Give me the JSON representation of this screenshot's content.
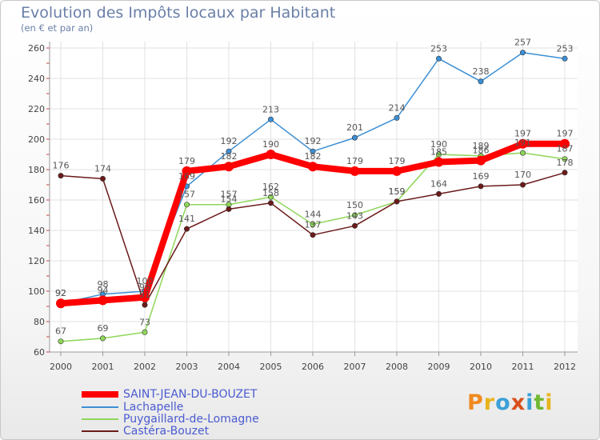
{
  "title": "Evolution des Impôts locaux par Habitant",
  "subtitle": "(en € et par an)",
  "brand": "Proxiti",
  "chart_data": {
    "type": "line",
    "title": "Evolution des Impôts locaux par Habitant",
    "subtitle": "(en € et par an)",
    "xlabel": "",
    "ylabel": "",
    "x": [
      "2000",
      "2001",
      "2002",
      "2003",
      "2004",
      "2005",
      "2006",
      "2007",
      "2008",
      "2009",
      "2010",
      "2011",
      "2012"
    ],
    "ylim": [
      60,
      260
    ],
    "yticks": [
      60,
      80,
      100,
      120,
      140,
      160,
      180,
      200,
      220,
      240,
      260
    ],
    "grid": true,
    "legend_position": "bottom-left",
    "series": [
      {
        "name": "SAINT-JEAN-DU-BOUZET",
        "color": "#ff0000",
        "values": [
          92,
          94,
          96,
          179,
          182,
          190,
          182,
          179,
          179,
          185,
          186,
          197,
          197
        ]
      },
      {
        "name": "Lachapelle",
        "color": "#3c8fd4",
        "values": [
          92,
          98,
          100,
          169,
          192,
          213,
          192,
          201,
          214,
          253,
          238,
          257,
          253
        ]
      },
      {
        "name": "Puygaillard-de-Lomagne",
        "color": "#8fd65a",
        "values": [
          67,
          69,
          73,
          157,
          157,
          162,
          144,
          150,
          159,
          190,
          189,
          191,
          187
        ]
      },
      {
        "name": "Castéra-Bouzet",
        "color": "#6b1a1a",
        "values": [
          176,
          174,
          91,
          141,
          154,
          158,
          137,
          143,
          159,
          164,
          169,
          170,
          178
        ]
      }
    ]
  }
}
